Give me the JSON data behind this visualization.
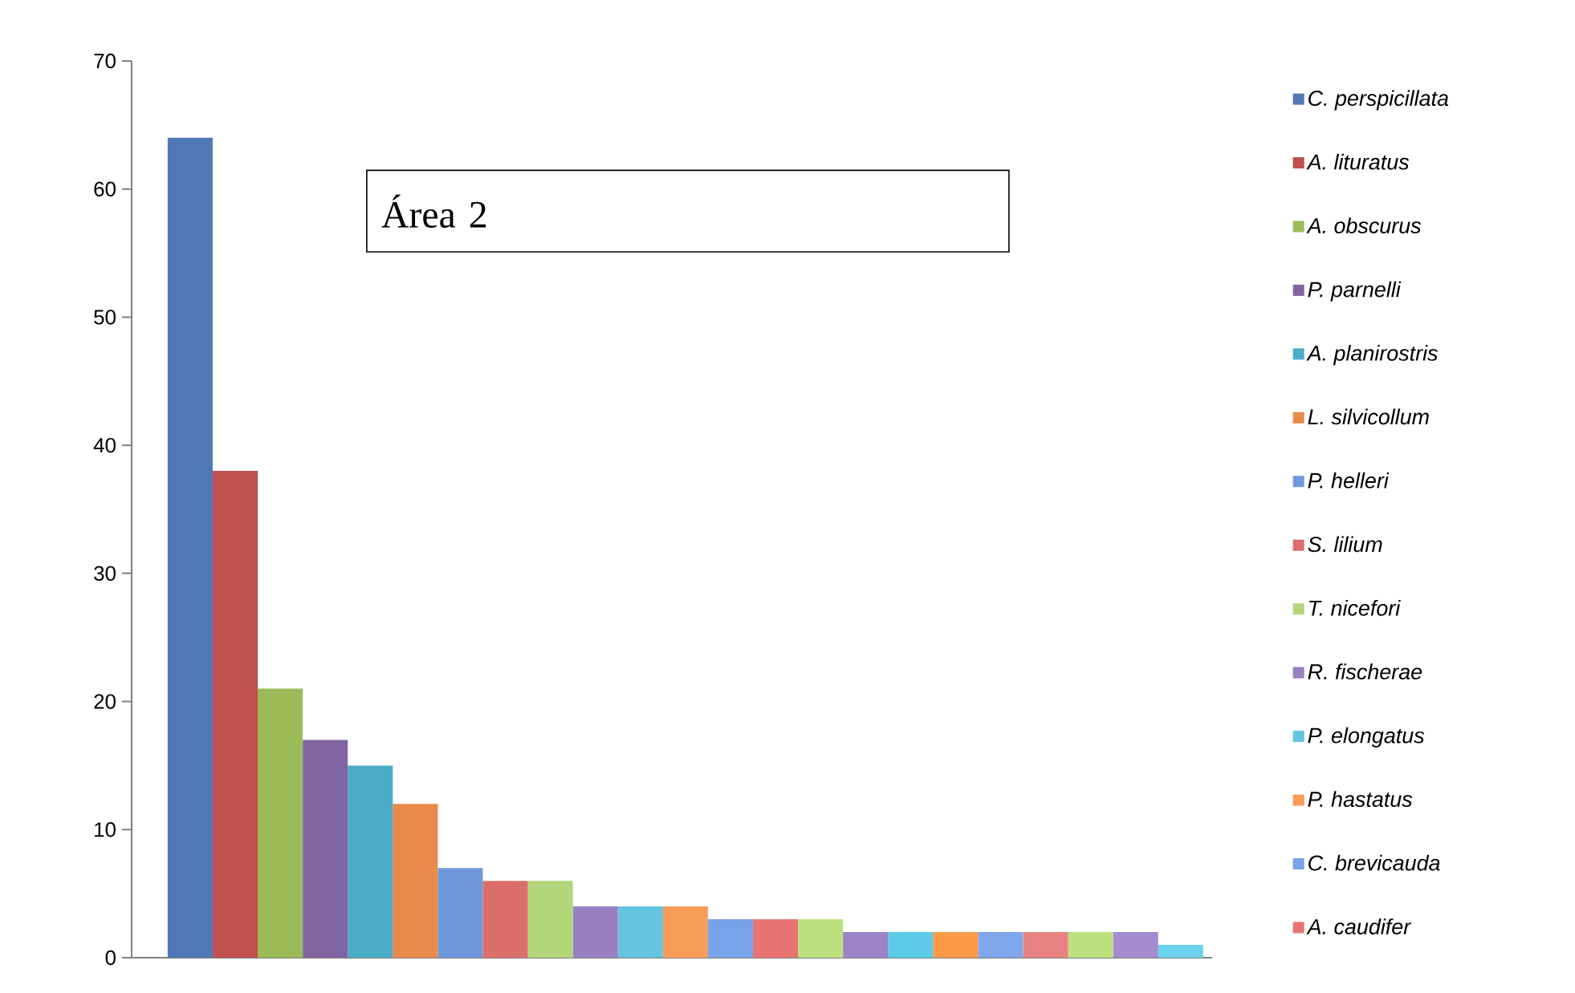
{
  "chart_data": {
    "type": "bar",
    "title": "Área 2",
    "categories": [
      null,
      null,
      null,
      null,
      null,
      null,
      null,
      null,
      null,
      null,
      null,
      null,
      null,
      null,
      null,
      null,
      null,
      null,
      null,
      null,
      null,
      null,
      null
    ],
    "stacked": true,
    "ylim": [
      0,
      70
    ],
    "yticks": [
      0,
      10,
      20,
      30,
      40,
      50,
      60,
      70
    ],
    "legend": "right",
    "series": [
      {
        "name": "C. perspicillata",
        "color": "#4f78b5",
        "values": [
          64,
          null,
          null,
          null,
          null,
          null,
          null,
          null,
          null,
          null,
          null,
          null,
          null,
          null,
          null,
          null,
          null,
          null,
          null,
          null,
          null,
          null,
          null
        ]
      },
      {
        "name": "A. lituratus",
        "color": "#c0504d",
        "values": [
          null,
          38,
          null,
          null,
          null,
          null,
          null,
          null,
          null,
          null,
          null,
          null,
          null,
          null,
          null,
          null,
          null,
          null,
          null,
          null,
          null,
          null,
          null
        ]
      },
      {
        "name": "A. obscurus",
        "color": "#9bbb59",
        "values": [
          null,
          null,
          21,
          null,
          null,
          null,
          null,
          null,
          null,
          null,
          null,
          null,
          null,
          null,
          null,
          null,
          null,
          null,
          null,
          null,
          null,
          null,
          null
        ]
      },
      {
        "name": "P. parnelli",
        "color": "#8064a2",
        "values": [
          null,
          null,
          null,
          17,
          null,
          null,
          null,
          null,
          null,
          null,
          null,
          null,
          null,
          null,
          null,
          null,
          null,
          null,
          null,
          null,
          null,
          null,
          null
        ]
      },
      {
        "name": "A. planirostris",
        "color": "#4bacc6",
        "values": [
          null,
          null,
          null,
          null,
          15,
          null,
          null,
          null,
          null,
          null,
          null,
          null,
          null,
          null,
          null,
          null,
          null,
          null,
          null,
          null,
          null,
          null,
          null
        ]
      },
      {
        "name": "L. silvicollum",
        "color": "#e88a4a",
        "values": [
          null,
          null,
          null,
          null,
          null,
          12,
          null,
          null,
          null,
          null,
          null,
          null,
          null,
          null,
          null,
          null,
          null,
          null,
          null,
          null,
          null,
          null,
          null
        ]
      },
      {
        "name": "P. helleri",
        "color": "#7097dc",
        "values": [
          null,
          null,
          null,
          null,
          null,
          null,
          7,
          null,
          null,
          null,
          null,
          null,
          null,
          null,
          null,
          null,
          null,
          null,
          null,
          null,
          null,
          null,
          null
        ]
      },
      {
        "name": "S. lilium",
        "color": "#dc6e6c",
        "values": [
          null,
          null,
          null,
          null,
          null,
          null,
          null,
          6,
          null,
          null,
          null,
          null,
          null,
          null,
          null,
          null,
          null,
          null,
          null,
          null,
          null,
          null,
          null
        ]
      },
      {
        "name": "T. nicefori",
        "color": "#b4d67a",
        "values": [
          null,
          null,
          null,
          null,
          null,
          null,
          null,
          null,
          6,
          null,
          null,
          null,
          null,
          null,
          null,
          null,
          null,
          null,
          null,
          null,
          null,
          null,
          null
        ]
      },
      {
        "name": "R. fischerae",
        "color": "#9a80c0",
        "values": [
          null,
          null,
          null,
          null,
          null,
          null,
          null,
          null,
          null,
          4,
          null,
          null,
          null,
          null,
          null,
          null,
          null,
          null,
          null,
          null,
          null,
          null,
          null
        ]
      },
      {
        "name": "P. elongatus",
        "color": "#66c4e0",
        "values": [
          null,
          null,
          null,
          null,
          null,
          null,
          null,
          null,
          null,
          null,
          4,
          null,
          null,
          null,
          null,
          null,
          null,
          null,
          null,
          null,
          null,
          null,
          null
        ]
      },
      {
        "name": "P. hastatus",
        "color": "#f89c5a",
        "values": [
          null,
          null,
          null,
          null,
          null,
          null,
          null,
          null,
          null,
          null,
          null,
          4,
          null,
          null,
          null,
          null,
          null,
          null,
          null,
          null,
          null,
          null,
          null
        ]
      },
      {
        "name": "C. brevicauda",
        "color": "#78a2ea",
        "values": [
          null,
          null,
          null,
          null,
          null,
          null,
          null,
          null,
          null,
          null,
          null,
          null,
          3,
          null,
          null,
          null,
          null,
          null,
          null,
          null,
          null,
          null,
          null
        ]
      },
      {
        "name": "A. caudifer",
        "color": "#e87472",
        "values": [
          null,
          null,
          null,
          null,
          null,
          null,
          null,
          null,
          null,
          null,
          null,
          null,
          null,
          3,
          null,
          null,
          null,
          null,
          null,
          null,
          null,
          null,
          null
        ]
      },
      {
        "color": "#bde07e",
        "values": [
          null,
          null,
          null,
          null,
          null,
          null,
          null,
          null,
          null,
          null,
          null,
          null,
          null,
          null,
          3,
          null,
          null,
          null,
          null,
          null,
          null,
          null,
          null
        ]
      },
      {
        "color": "#9c82c6",
        "values": [
          null,
          null,
          null,
          null,
          null,
          null,
          null,
          null,
          null,
          null,
          null,
          null,
          null,
          null,
          null,
          2,
          null,
          null,
          null,
          null,
          null,
          null,
          null
        ]
      },
      {
        "color": "#5ccbe8",
        "values": [
          null,
          null,
          null,
          null,
          null,
          null,
          null,
          null,
          null,
          null,
          null,
          null,
          null,
          null,
          null,
          null,
          2,
          null,
          null,
          null,
          null,
          null,
          null
        ]
      },
      {
        "color": "#fb9a48",
        "values": [
          null,
          null,
          null,
          null,
          null,
          null,
          null,
          null,
          null,
          null,
          null,
          null,
          null,
          null,
          null,
          null,
          null,
          2,
          null,
          null,
          null,
          null,
          null
        ]
      },
      {
        "color": "#80a6ec",
        "values": [
          null,
          null,
          null,
          null,
          null,
          null,
          null,
          null,
          null,
          null,
          null,
          null,
          null,
          null,
          null,
          null,
          null,
          null,
          2,
          null,
          null,
          null,
          null
        ]
      },
      {
        "color": "#e88280",
        "values": [
          null,
          null,
          null,
          null,
          null,
          null,
          null,
          null,
          null,
          null,
          null,
          null,
          null,
          null,
          null,
          null,
          null,
          null,
          null,
          2,
          null,
          null,
          null
        ]
      },
      {
        "color": "#bde07e",
        "values": [
          null,
          null,
          null,
          null,
          null,
          null,
          null,
          null,
          null,
          null,
          null,
          null,
          null,
          null,
          null,
          null,
          null,
          null,
          null,
          null,
          2,
          null,
          null
        ]
      },
      {
        "color": "#a48cce",
        "values": [
          null,
          null,
          null,
          null,
          null,
          null,
          null,
          null,
          null,
          null,
          null,
          null,
          null,
          null,
          null,
          null,
          null,
          null,
          null,
          null,
          null,
          2,
          null
        ]
      },
      {
        "color": "#6ad2ee",
        "values": [
          null,
          null,
          null,
          null,
          null,
          null,
          null,
          null,
          null,
          null,
          null,
          null,
          null,
          null,
          null,
          null,
          null,
          null,
          null,
          null,
          null,
          null,
          1
        ]
      }
    ]
  }
}
